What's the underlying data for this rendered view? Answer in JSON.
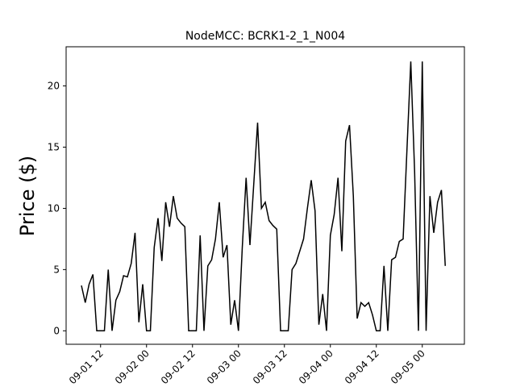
{
  "chart_data": {
    "type": "line",
    "title": "NodeMCC: BCRK1-2_1_N004",
    "y_label": "Price ($)",
    "x": [
      "09-01 07",
      "09-01 08",
      "09-01 09",
      "09-01 10",
      "09-01 11",
      "09-01 12",
      "09-01 13",
      "09-01 14",
      "09-01 15",
      "09-01 16",
      "09-01 17",
      "09-01 18",
      "09-01 19",
      "09-01 20",
      "09-01 21",
      "09-01 22",
      "09-01 23",
      "09-02 00",
      "09-02 01",
      "09-02 02",
      "09-02 03",
      "09-02 04",
      "09-02 05",
      "09-02 06",
      "09-02 07",
      "09-02 08",
      "09-02 09",
      "09-02 10",
      "09-02 11",
      "09-02 12",
      "09-02 13",
      "09-02 14",
      "09-02 15",
      "09-02 16",
      "09-02 17",
      "09-02 18",
      "09-02 19",
      "09-02 20",
      "09-02 21",
      "09-02 22",
      "09-02 23",
      "09-03 00",
      "09-03 01",
      "09-03 02",
      "09-03 03",
      "09-03 04",
      "09-03 05",
      "09-03 06",
      "09-03 07",
      "09-03 08",
      "09-03 09",
      "09-03 10",
      "09-03 11",
      "09-03 12",
      "09-03 13",
      "09-03 14",
      "09-03 15",
      "09-03 16",
      "09-03 17",
      "09-03 18",
      "09-03 19",
      "09-03 20",
      "09-03 21",
      "09-03 22",
      "09-03 23",
      "09-04 00",
      "09-04 01",
      "09-04 02",
      "09-04 03",
      "09-04 04",
      "09-04 05",
      "09-04 06",
      "09-04 07",
      "09-04 08",
      "09-04 09",
      "09-04 10",
      "09-04 11",
      "09-04 12",
      "09-04 13",
      "09-04 14",
      "09-04 15",
      "09-04 16",
      "09-04 17",
      "09-04 18",
      "09-04 19",
      "09-04 20",
      "09-04 21",
      "09-04 22",
      "09-04 23",
      "09-05 00",
      "09-05 01",
      "09-05 02",
      "09-05 03",
      "09-05 04",
      "09-05 05",
      "09-05 06"
    ],
    "series": [
      {
        "name": "Price",
        "color": "#000000",
        "values": [
          3.7,
          2.3,
          3.8,
          4.6,
          0,
          0,
          0,
          5.0,
          0,
          2.5,
          3.2,
          4.5,
          4.4,
          5.5,
          8.0,
          0.7,
          3.8,
          0,
          0,
          6.8,
          9.2,
          5.7,
          10.5,
          8.5,
          11.0,
          9.2,
          8.8,
          8.5,
          0,
          0,
          0,
          7.8,
          0,
          5.3,
          5.8,
          7.5,
          10.5,
          6.0,
          7.0,
          0.5,
          2.5,
          0,
          6.8,
          12.5,
          7.0,
          12.0,
          17.0,
          10.0,
          10.5,
          9.0,
          8.6,
          8.3,
          0,
          0,
          0,
          5.0,
          5.5,
          6.5,
          7.5,
          10.0,
          12.3,
          9.8,
          0.5,
          3.0,
          0,
          7.8,
          9.5,
          12.5,
          6.5,
          15.5,
          16.8,
          11.0,
          1.0,
          2.3,
          2.0,
          2.3,
          1.3,
          0,
          0,
          5.3,
          0,
          5.8,
          6.0,
          7.3,
          7.5,
          14.8,
          22.0,
          13.0,
          0,
          22.0,
          0,
          11.0,
          8.0,
          10.5,
          11.5,
          5.3
        ]
      }
    ],
    "xlim": [
      "09-01 03",
      "09-05 11"
    ],
    "xticks": [
      "09-01 12",
      "09-02 00",
      "09-02 12",
      "09-03 00",
      "09-03 12",
      "09-04 00",
      "09-04 12",
      "09-05 00"
    ],
    "ylim": [
      -1.1,
      23.2
    ],
    "yticks": [
      0,
      5,
      10,
      15,
      20
    ]
  }
}
